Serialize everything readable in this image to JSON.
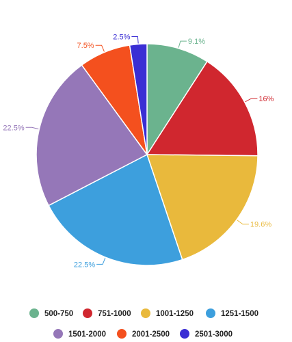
{
  "chart_data": {
    "type": "pie",
    "start_angle_deg": 0,
    "direction": "clockwise",
    "slices": [
      {
        "name": "500-750",
        "value": 9.1,
        "label": "9.1%",
        "color": "#6bb38e"
      },
      {
        "name": "751-1000",
        "value": 16,
        "label": "16%",
        "color": "#d0272f"
      },
      {
        "name": "1001-1250",
        "value": 19.6,
        "label": "19.6%",
        "color": "#e9b93c"
      },
      {
        "name": "1251-1500",
        "value": 22.5,
        "label": "22.5%",
        "color": "#3d9fdd"
      },
      {
        "name": "1501-2000",
        "value": 22.5,
        "label": "22.5%",
        "color": "#9577b8"
      },
      {
        "name": "2001-2500",
        "value": 7.5,
        "label": "7.5%",
        "color": "#f4501e"
      },
      {
        "name": "2501-3000",
        "value": 2.5,
        "label": "2.5%",
        "color": "#3a2ed4"
      }
    ],
    "legend": {
      "placement": "bottom",
      "rows": [
        [
          "500-750",
          "751-1000",
          "1001-1250",
          "1251-1500"
        ],
        [
          "1501-2000",
          "2001-2500",
          "2501-3000"
        ]
      ]
    }
  }
}
